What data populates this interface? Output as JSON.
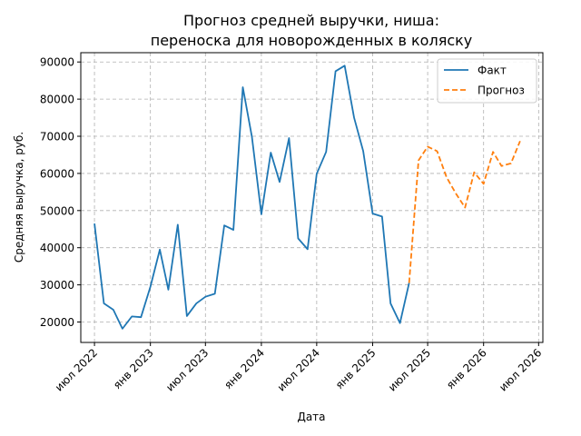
{
  "chart_data": {
    "type": "line",
    "title": "Прогноз средней выручки, ниша:\nпереноска для новорожденных в коляску",
    "title_lines": [
      "Прогноз средней выручки, ниша:",
      "переноска для новорожденных в коляску"
    ],
    "xlabel": "Дата",
    "ylabel": "Средняя выручка, руб.",
    "ylim": [
      14500,
      92500
    ],
    "xlim": [
      "2022-05-17",
      "2026-07-15"
    ],
    "yticks": [
      20000,
      30000,
      40000,
      50000,
      60000,
      70000,
      80000,
      90000
    ],
    "xticks": [
      {
        "date": "2022-07-01",
        "label": "июл 2022"
      },
      {
        "date": "2023-01-01",
        "label": "янв 2023"
      },
      {
        "date": "2023-07-01",
        "label": "июл 2023"
      },
      {
        "date": "2024-01-01",
        "label": "янв 2024"
      },
      {
        "date": "2024-07-01",
        "label": "июл 2024"
      },
      {
        "date": "2025-01-01",
        "label": "янв 2025"
      },
      {
        "date": "2025-07-01",
        "label": "июл 2025"
      },
      {
        "date": "2026-01-01",
        "label": "янв 2026"
      },
      {
        "date": "2026-07-01",
        "label": "июл 2026"
      }
    ],
    "grid": true,
    "legend": "top-right",
    "series": [
      {
        "name": "Факт",
        "color": "#1f77b4",
        "style": "solid",
        "x": [
          "2022-07-01",
          "2022-08-01",
          "2022-09-01",
          "2022-10-01",
          "2022-11-01",
          "2022-12-01",
          "2023-01-01",
          "2023-02-01",
          "2023-03-01",
          "2023-04-01",
          "2023-05-01",
          "2023-06-01",
          "2023-07-01",
          "2023-08-01",
          "2023-09-01",
          "2023-10-01",
          "2023-11-01",
          "2023-12-01",
          "2024-01-01",
          "2024-02-01",
          "2024-03-01",
          "2024-04-01",
          "2024-05-01",
          "2024-06-01",
          "2024-07-01",
          "2024-08-01",
          "2024-09-01",
          "2024-10-01",
          "2024-11-01",
          "2024-12-01",
          "2025-01-01",
          "2025-02-01",
          "2025-03-01",
          "2025-04-01",
          "2025-05-01"
        ],
        "values": [
          46500,
          25000,
          23300,
          18200,
          21500,
          21300,
          29500,
          39500,
          28700,
          46200,
          21600,
          25000,
          26800,
          27600,
          46000,
          44800,
          83200,
          69800,
          49000,
          65600,
          57700,
          69500,
          42500,
          39600,
          59900,
          65800,
          87500,
          89000,
          75000,
          66000,
          49200,
          48400,
          25000,
          19700,
          30500
        ]
      },
      {
        "name": "Прогноз",
        "color": "#ff7f0e",
        "style": "dashed",
        "x": [
          "2025-05-01",
          "2025-06-01",
          "2025-07-01",
          "2025-08-01",
          "2025-09-01",
          "2025-10-01",
          "2025-11-01",
          "2025-12-01",
          "2026-01-01",
          "2026-02-01",
          "2026-03-01",
          "2026-04-01",
          "2026-05-01"
        ],
        "values": [
          30500,
          63500,
          67200,
          66000,
          59000,
          54700,
          50800,
          60300,
          57200,
          65800,
          62000,
          62700,
          68700
        ]
      }
    ]
  }
}
